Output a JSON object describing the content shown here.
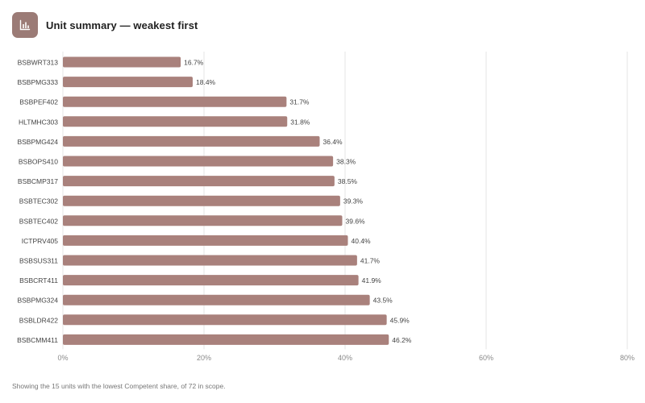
{
  "header": {
    "title": "Unit summary — weakest first",
    "icon": "bar-chart-icon"
  },
  "colors": {
    "bar": "#a9817c",
    "icon_bg": "#9b7b76",
    "grid": "#e6e6e6"
  },
  "chart_data": {
    "type": "bar",
    "orientation": "horizontal",
    "categories": [
      "BSBWRT313",
      "BSBPMG333",
      "BSBPEF402",
      "HLTMHC303",
      "BSBPMG424",
      "BSBOPS410",
      "BSBCMP317",
      "BSBTEC302",
      "BSBTEC402",
      "ICTPRV405",
      "BSBSUS311",
      "BSBCRT411",
      "BSBPMG324",
      "BSBLDR422",
      "BSBCMM411"
    ],
    "values": [
      16.7,
      18.4,
      31.7,
      31.8,
      36.4,
      38.3,
      38.5,
      39.3,
      39.6,
      40.4,
      41.7,
      41.9,
      43.5,
      45.9,
      46.2
    ],
    "value_labels": [
      "16.7%",
      "18.4%",
      "31.7%",
      "31.8%",
      "36.4%",
      "38.3%",
      "38.5%",
      "39.3%",
      "39.6%",
      "40.4%",
      "41.7%",
      "41.9%",
      "43.5%",
      "45.9%",
      "46.2%"
    ],
    "xlim": [
      0,
      80
    ],
    "xticks": [
      0,
      20,
      40,
      60,
      80
    ],
    "xtick_labels": [
      "0%",
      "20%",
      "40%",
      "60%",
      "80%"
    ],
    "grid": true
  },
  "footnote": "Showing the 15 units with the lowest Competent share, of 72 in scope."
}
